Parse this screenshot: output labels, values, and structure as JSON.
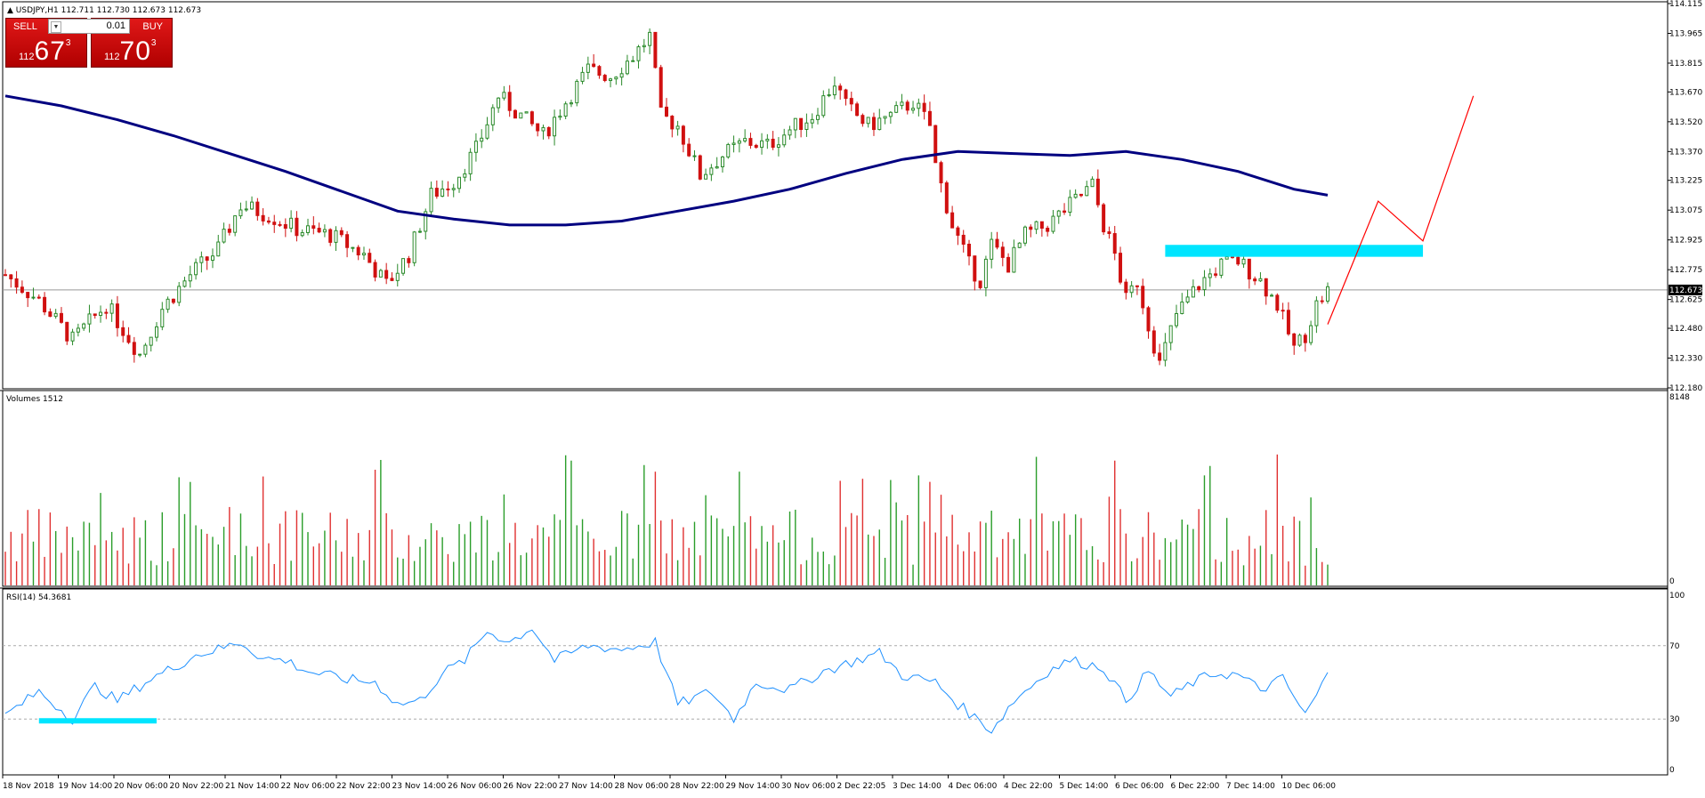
{
  "header": {
    "symbol_line": "USDJPY,H1  112.711 112.730 112.673 112.673"
  },
  "trade_panel": {
    "sell_label": "SELL",
    "buy_label": "BUY",
    "lot": "0.01",
    "sell_prefix": "112",
    "sell_big": "67",
    "sell_sup": "3",
    "buy_prefix": "112",
    "buy_big": "70",
    "buy_sup": "3"
  },
  "colors": {
    "bull_candle": "#2a8a2a",
    "bear_candle": "#d01010",
    "ma_line": "#000080",
    "zone": "#00e5ff",
    "projection": "#ff0000",
    "rsi_line": "#1e90ff",
    "volume_up": "#2a9d2a",
    "volume_down": "#e03030",
    "price_marker_bg": "#000000"
  },
  "chart_data": [
    {
      "type": "candlestick",
      "title": "USDJPY,H1",
      "ylim": [
        112.18,
        114.115
      ],
      "y_ticks": [
        "114.115",
        "113.965",
        "113.815",
        "113.670",
        "113.520",
        "113.370",
        "113.225",
        "113.075",
        "112.925",
        "112.775",
        "112.625",
        "112.480",
        "112.330",
        "112.180"
      ],
      "current_price": "112.673",
      "x_labels": [
        "18 Nov 2018",
        "19 Nov 14:00",
        "20 Nov 06:00",
        "20 Nov 22:00",
        "21 Nov 14:00",
        "22 Nov 06:00",
        "22 Nov 22:00",
        "23 Nov 14:00",
        "26 Nov 06:00",
        "26 Nov 22:00",
        "27 Nov 14:00",
        "28 Nov 06:00",
        "28 Nov 22:00",
        "29 Nov 14:00",
        "30 Nov 06:00",
        "2 Dec 22:05",
        "3 Dec 14:00",
        "4 Dec 06:00",
        "4 Dec 22:00",
        "5 Dec 14:00",
        "6 Dec 06:00",
        "6 Dec 22:00",
        "7 Dec 14:00",
        "10 Dec 06:00"
      ],
      "close_path": [
        [
          0,
          112.75
        ],
        [
          6,
          112.62
        ],
        [
          12,
          112.42
        ],
        [
          18,
          112.6
        ],
        [
          24,
          112.35
        ],
        [
          28,
          112.58
        ],
        [
          33,
          112.75
        ],
        [
          38,
          112.88
        ],
        [
          42,
          113.1
        ],
        [
          47,
          113.05
        ],
        [
          52,
          112.98
        ],
        [
          58,
          112.95
        ],
        [
          64,
          112.85
        ],
        [
          68,
          112.7
        ],
        [
          72,
          112.85
        ],
        [
          76,
          113.15
        ],
        [
          80,
          113.22
        ],
        [
          84,
          113.38
        ],
        [
          88,
          113.65
        ],
        [
          92,
          113.55
        ],
        [
          96,
          113.45
        ],
        [
          100,
          113.62
        ],
        [
          104,
          113.78
        ],
        [
          108,
          113.75
        ],
        [
          112,
          113.85
        ],
        [
          115,
          113.95
        ],
        [
          117,
          113.55
        ],
        [
          120,
          113.5
        ],
        [
          124,
          113.25
        ],
        [
          128,
          113.35
        ],
        [
          132,
          113.42
        ],
        [
          136,
          113.4
        ],
        [
          140,
          113.48
        ],
        [
          144,
          113.55
        ],
        [
          148,
          113.72
        ],
        [
          150,
          113.6
        ],
        [
          154,
          113.5
        ],
        [
          158,
          113.55
        ],
        [
          162,
          113.62
        ],
        [
          165,
          113.5
        ],
        [
          166,
          113.3
        ],
        [
          169,
          113.0
        ],
        [
          172,
          112.8
        ],
        [
          174,
          112.72
        ],
        [
          176,
          112.9
        ],
        [
          179,
          112.8
        ],
        [
          182,
          112.95
        ],
        [
          186,
          113.0
        ],
        [
          190,
          113.1
        ],
        [
          194,
          113.2
        ],
        [
          196,
          113.0
        ],
        [
          198,
          112.85
        ],
        [
          200,
          112.62
        ],
        [
          202,
          112.72
        ],
        [
          204,
          112.5
        ],
        [
          206,
          112.3
        ],
        [
          209,
          112.55
        ],
        [
          213,
          112.7
        ],
        [
          217,
          112.8
        ],
        [
          220,
          112.82
        ],
        [
          224,
          112.72
        ],
        [
          227,
          112.6
        ],
        [
          230,
          112.38
        ],
        [
          232,
          112.45
        ],
        [
          234,
          112.6
        ],
        [
          236,
          112.67
        ]
      ],
      "moving_average": [
        [
          0,
          113.65
        ],
        [
          10,
          113.6
        ],
        [
          20,
          113.53
        ],
        [
          30,
          113.45
        ],
        [
          40,
          113.36
        ],
        [
          50,
          113.27
        ],
        [
          60,
          113.17
        ],
        [
          70,
          113.07
        ],
        [
          80,
          113.03
        ],
        [
          90,
          113.0
        ],
        [
          100,
          113.0
        ],
        [
          110,
          113.02
        ],
        [
          120,
          113.07
        ],
        [
          130,
          113.12
        ],
        [
          140,
          113.18
        ],
        [
          150,
          113.26
        ],
        [
          160,
          113.33
        ],
        [
          170,
          113.37
        ],
        [
          180,
          113.36
        ],
        [
          190,
          113.35
        ],
        [
          200,
          113.37
        ],
        [
          210,
          113.33
        ],
        [
          220,
          113.27
        ],
        [
          230,
          113.18
        ],
        [
          236,
          113.15
        ]
      ],
      "resistance_zone": [
        112.84,
        112.9
      ],
      "projection_path": [
        [
          236,
          112.5
        ],
        [
          245,
          113.12
        ],
        [
          253,
          112.92
        ],
        [
          262,
          113.65
        ]
      ]
    },
    {
      "type": "bar",
      "title": "Volumes 1512",
      "ylim": [
        0,
        8148
      ],
      "y_ticks": [
        "8148",
        "0"
      ],
      "values_note": "per-candle tick volume"
    },
    {
      "type": "line",
      "title": "RSI(14) 54.3681",
      "ylim": [
        0,
        100
      ],
      "y_ticks": [
        "100",
        "70",
        "30",
        "0"
      ],
      "levels": [
        70,
        30
      ],
      "path": [
        [
          0,
          32
        ],
        [
          6,
          45
        ],
        [
          12,
          30
        ],
        [
          16,
          48
        ],
        [
          20,
          40
        ],
        [
          26,
          52
        ],
        [
          30,
          58
        ],
        [
          34,
          65
        ],
        [
          38,
          68
        ],
        [
          42,
          72
        ],
        [
          46,
          63
        ],
        [
          50,
          62
        ],
        [
          54,
          56
        ],
        [
          60,
          52
        ],
        [
          66,
          50
        ],
        [
          70,
          38
        ],
        [
          74,
          40
        ],
        [
          78,
          55
        ],
        [
          82,
          62
        ],
        [
          86,
          78
        ],
        [
          90,
          72
        ],
        [
          94,
          80
        ],
        [
          98,
          62
        ],
        [
          104,
          70
        ],
        [
          110,
          68
        ],
        [
          116,
          72
        ],
        [
          120,
          38
        ],
        [
          126,
          45
        ],
        [
          130,
          30
        ],
        [
          134,
          50
        ],
        [
          140,
          46
        ],
        [
          146,
          56
        ],
        [
          152,
          62
        ],
        [
          156,
          66
        ],
        [
          160,
          54
        ],
        [
          166,
          50
        ],
        [
          170,
          38
        ],
        [
          176,
          24
        ],
        [
          180,
          40
        ],
        [
          186,
          56
        ],
        [
          190,
          62
        ],
        [
          196,
          58
        ],
        [
          200,
          40
        ],
        [
          204,
          56
        ],
        [
          208,
          42
        ],
        [
          212,
          50
        ],
        [
          216,
          55
        ],
        [
          220,
          54
        ],
        [
          224,
          46
        ],
        [
          228,
          52
        ],
        [
          232,
          32
        ],
        [
          236,
          54
        ]
      ],
      "marker_zone": [
        29,
        27
      ]
    }
  ]
}
